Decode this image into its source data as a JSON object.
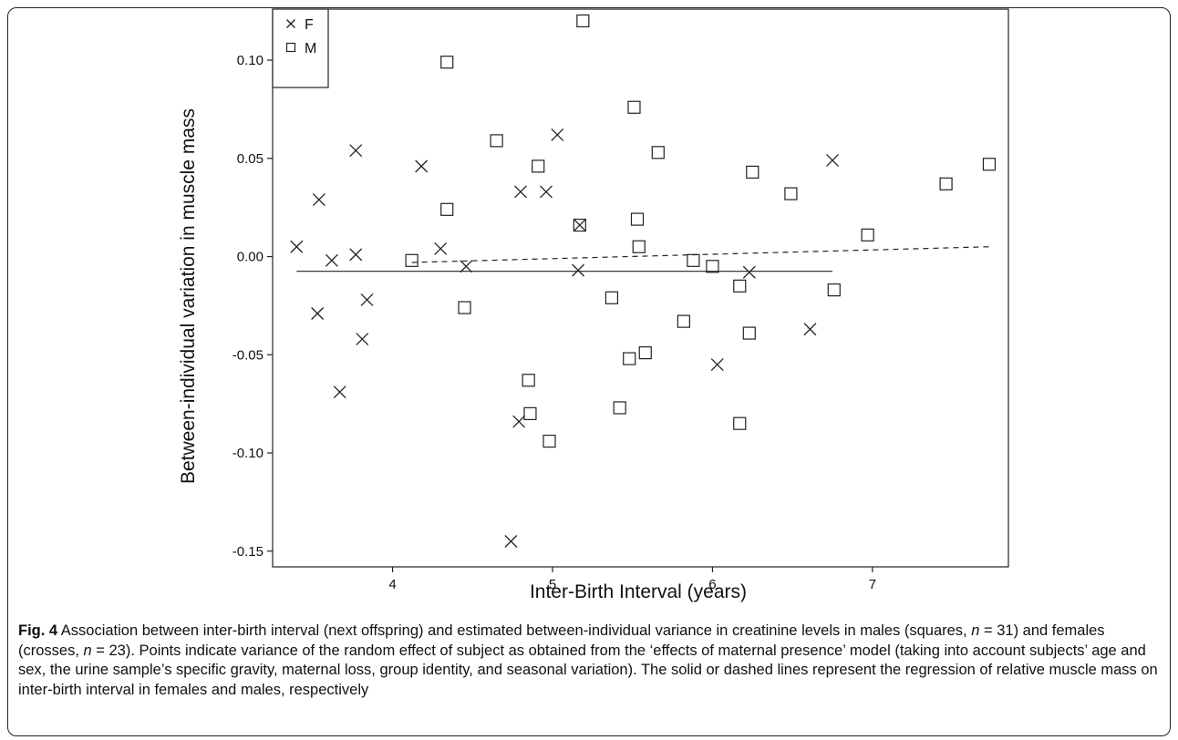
{
  "chart_data": {
    "type": "scatter",
    "xlabel": "Inter-Birth Interval (years)",
    "ylabel": "Between-individual variation in muscle mass",
    "xlim": [
      3.25,
      7.85
    ],
    "ylim": [
      -0.158,
      0.126
    ],
    "xticks": [
      4,
      5,
      6,
      7
    ],
    "yticks": [
      -0.15,
      -0.1,
      -0.05,
      0.0,
      0.05,
      0.1
    ],
    "ytick_labels": [
      "-0.15",
      "-0.10",
      "-0.05",
      "0.00",
      "0.05",
      "0.10"
    ],
    "legend_position": "top-left",
    "grid": false,
    "series": [
      {
        "name": "F",
        "marker": "cross",
        "x": [
          3.4,
          3.53,
          3.54,
          3.62,
          3.67,
          3.77,
          3.77,
          3.81,
          3.84,
          4.18,
          4.3,
          4.46,
          4.74,
          4.79,
          4.8,
          4.96,
          5.03,
          5.16,
          5.17,
          6.03,
          6.23,
          6.61,
          6.75
        ],
        "y": [
          0.005,
          -0.029,
          0.029,
          -0.002,
          -0.069,
          0.001,
          0.054,
          -0.042,
          -0.022,
          0.046,
          0.004,
          -0.005,
          -0.145,
          -0.084,
          0.033,
          0.033,
          0.062,
          -0.007,
          0.016,
          -0.055,
          -0.008,
          -0.037,
          0.049
        ]
      },
      {
        "name": "M",
        "marker": "square",
        "x": [
          4.12,
          4.34,
          4.34,
          4.45,
          4.65,
          4.85,
          4.86,
          4.91,
          4.98,
          5.17,
          5.19,
          5.37,
          5.42,
          5.48,
          5.51,
          5.53,
          5.54,
          5.58,
          5.66,
          5.82,
          5.88,
          6.0,
          6.17,
          6.17,
          6.23,
          6.25,
          6.49,
          6.76,
          6.97,
          7.46,
          7.73
        ],
        "y": [
          -0.002,
          0.024,
          0.099,
          -0.026,
          0.059,
          -0.063,
          -0.08,
          0.046,
          -0.094,
          0.016,
          0.12,
          -0.021,
          -0.077,
          -0.052,
          0.076,
          0.019,
          0.005,
          -0.049,
          0.053,
          -0.033,
          -0.002,
          -0.005,
          -0.015,
          -0.085,
          -0.039,
          0.043,
          0.032,
          -0.017,
          0.011,
          0.037,
          0.047
        ]
      }
    ],
    "regression_lines": [
      {
        "series": "F",
        "style": "solid",
        "x": [
          3.4,
          6.75
        ],
        "y": [
          -0.0075,
          -0.0075
        ]
      },
      {
        "series": "M",
        "style": "dashed",
        "x": [
          4.12,
          7.73
        ],
        "y": [
          -0.003,
          0.005
        ]
      }
    ]
  },
  "caption": {
    "label": "Fig. 4",
    "text_1": " Association between inter-birth interval (next offspring) and estimated between-individual variance in creatinine levels in males (squares, ",
    "n_var_1": "n",
    "text_2": " = 31) and females (crosses, ",
    "n_var_2": "n",
    "text_3": " = 23). Points indicate variance of the random effect of subject as obtained from the ‘effects of maternal presence’ model (taking into account subjects’ age and sex, the urine sample’s specific gravity, maternal loss, group identity, and seasonal variation). The solid or dashed lines represent the regression of relative muscle mass on inter-birth interval in females and males, respectively"
  }
}
